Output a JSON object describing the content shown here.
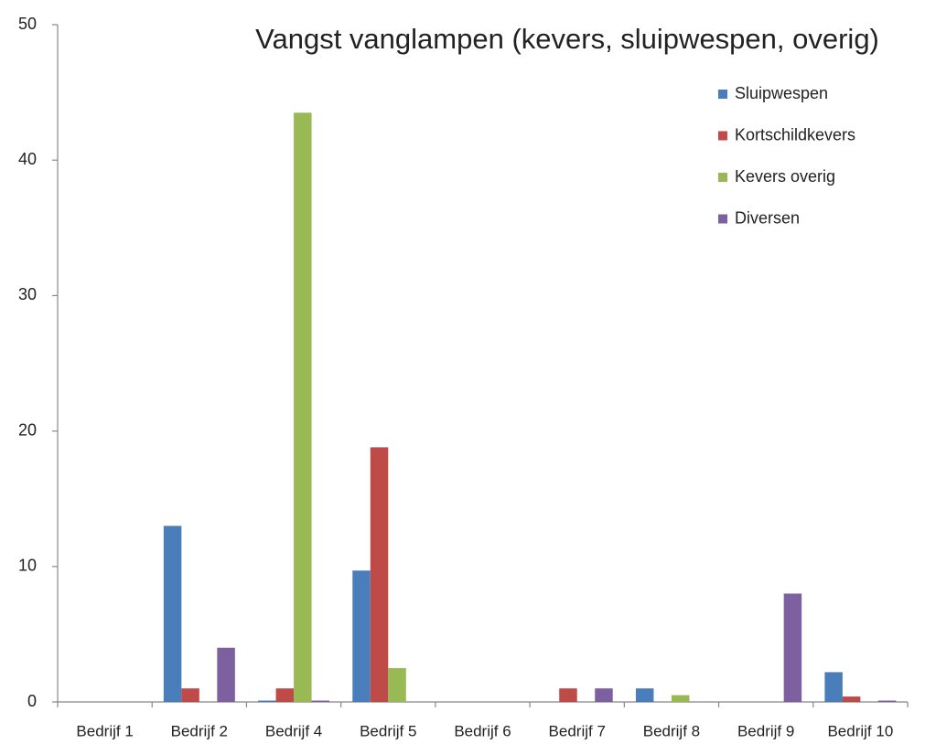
{
  "chart_data": {
    "type": "bar",
    "title": "Vangst vanglampen (kevers, sluipwespen, overig)",
    "categories": [
      "Bedrijf 1",
      "Bedrijf 2",
      "Bedrijf 4",
      "Bedrijf 5",
      "Bedrijf 6",
      "Bedrijf 7",
      "Bedrijf 8",
      "Bedrijf 9",
      "Bedrijf 10"
    ],
    "series": [
      {
        "name": "Sluipwespen",
        "color": "#4a7ebb",
        "values": [
          0,
          13,
          0.1,
          9.7,
          0,
          0,
          1,
          0,
          2.2
        ]
      },
      {
        "name": "Kortschildkevers",
        "color": "#be4b48",
        "values": [
          0,
          1,
          1,
          18.8,
          0,
          1,
          0,
          0,
          0.4
        ]
      },
      {
        "name": "Kevers overig",
        "color": "#98b954",
        "values": [
          0,
          0,
          43.5,
          2.5,
          0,
          0,
          0.5,
          0,
          0
        ]
      },
      {
        "name": "Diversen",
        "color": "#7d60a0",
        "values": [
          0,
          4,
          0.1,
          0,
          0,
          1,
          0,
          8,
          0.1
        ]
      }
    ],
    "ylim": [
      0,
      50
    ],
    "yticks": [
      0,
      10,
      20,
      30,
      40,
      50
    ],
    "grid": false,
    "legend": "top-right"
  }
}
